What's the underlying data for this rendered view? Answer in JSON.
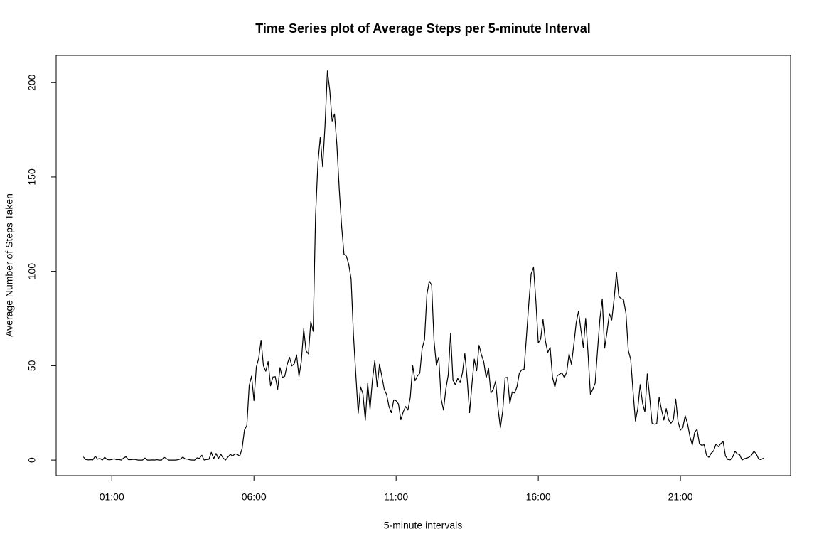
{
  "chart_data": {
    "type": "line",
    "title": "Time Series plot of Average Steps per 5-minute Interval",
    "x_label": "5-minute intervals",
    "y_label": "Average Number of Steps Taken",
    "color": "#000000",
    "x": [
      0,
      5,
      10,
      15,
      20,
      25,
      30,
      35,
      40,
      45,
      50,
      55,
      60,
      65,
      70,
      75,
      80,
      85,
      90,
      95,
      100,
      105,
      110,
      115,
      120,
      125,
      130,
      135,
      140,
      145,
      150,
      155,
      160,
      165,
      170,
      175,
      180,
      185,
      190,
      195,
      200,
      205,
      210,
      215,
      220,
      225,
      230,
      235,
      240,
      245,
      250,
      255,
      260,
      265,
      270,
      275,
      280,
      285,
      290,
      295,
      300,
      305,
      310,
      315,
      320,
      325,
      330,
      335,
      340,
      345,
      350,
      355,
      360,
      365,
      370,
      375,
      380,
      385,
      390,
      395,
      400,
      405,
      410,
      415,
      420,
      425,
      430,
      435,
      440,
      445,
      450,
      455,
      460,
      465,
      470,
      475,
      480,
      485,
      490,
      495,
      500,
      505,
      510,
      515,
      520,
      525,
      530,
      535,
      540,
      545,
      550,
      555,
      560,
      565,
      570,
      575,
      580,
      585,
      590,
      595,
      600,
      605,
      610,
      615,
      620,
      625,
      630,
      635,
      640,
      645,
      650,
      655,
      660,
      665,
      670,
      675,
      680,
      685,
      690,
      695,
      700,
      705,
      710,
      715,
      720,
      725,
      730,
      735,
      740,
      745,
      750,
      755,
      760,
      765,
      770,
      775,
      780,
      785,
      790,
      795,
      800,
      805,
      810,
      815,
      820,
      825,
      830,
      835,
      840,
      845,
      850,
      855,
      860,
      865,
      870,
      875,
      880,
      885,
      890,
      895,
      900,
      905,
      910,
      915,
      920,
      925,
      930,
      935,
      940,
      945,
      950,
      955,
      960,
      965,
      970,
      975,
      980,
      985,
      990,
      995,
      1000,
      1005,
      1010,
      1015,
      1020,
      1025,
      1030,
      1035,
      1040,
      1045,
      1050,
      1055,
      1060,
      1065,
      1070,
      1075,
      1080,
      1085,
      1090,
      1095,
      1100,
      1105,
      1110,
      1115,
      1120,
      1125,
      1130,
      1135,
      1140,
      1145,
      1150,
      1155,
      1160,
      1165,
      1170,
      1175,
      1180,
      1185,
      1190,
      1195,
      1200,
      1205,
      1210,
      1215,
      1220,
      1225,
      1230,
      1235,
      1240,
      1245,
      1250,
      1255,
      1260,
      1265,
      1270,
      1275,
      1280,
      1285,
      1290,
      1295,
      1300,
      1305,
      1310,
      1315,
      1320,
      1325,
      1330,
      1335,
      1340,
      1345,
      1350,
      1355,
      1360,
      1365,
      1370,
      1375,
      1380,
      1385,
      1390,
      1395,
      1400,
      1405,
      1410,
      1415,
      1420,
      1425,
      1430,
      1435
    ],
    "values": [
      1.7,
      0.3,
      0.1,
      0.2,
      0.1,
      2.1,
      0.5,
      0.9,
      0,
      1.5,
      0.3,
      0.1,
      0.3,
      0.7,
      0.2,
      0.3,
      0,
      1.1,
      1.8,
      0.2,
      0.2,
      0.4,
      0.3,
      0,
      0,
      0,
      1.1,
      0,
      0,
      0.1,
      0,
      0.2,
      0,
      0,
      1.5,
      0.9,
      0,
      0,
      0,
      0,
      0.2,
      0.6,
      1.6,
      0.6,
      0.5,
      0.1,
      0,
      0,
      1.2,
      0.9,
      2.6,
      0,
      0.3,
      0.4,
      4.1,
      0.7,
      3.5,
      0.8,
      3.1,
      1.1,
      0,
      1.6,
      3,
      2.2,
      3.3,
      3,
      2.1,
      6.1,
      16,
      18.3,
      39.5,
      44.5,
      31.5,
      49.3,
      53.8,
      63.5,
      50,
      47.1,
      52.2,
      39.3,
      44,
      44.2,
      37.4,
      49,
      43.8,
      44.4,
      50.5,
      54.5,
      49.9,
      51,
      55.7,
      44.3,
      52.3,
      69.5,
      57.8,
      56.2,
      73.4,
      68.2,
      129.4,
      157.5,
      171.2,
      155.4,
      177.3,
      206.2,
      195.9,
      179.6,
      183.4,
      167,
      143.5,
      124,
      109.1,
      108.1,
      103.7,
      96,
      66.2,
      45.2,
      24.8,
      38.8,
      35,
      21.1,
      40.6,
      27,
      42.4,
      52.7,
      38.9,
      50.8,
      44.3,
      37.4,
      34.7,
      28.3,
      25.1,
      31.9,
      31.4,
      29.7,
      21.3,
      25.5,
      28.4,
      26.5,
      33.4,
      50,
      42,
      44.6,
      46,
      59.2,
      63.9,
      87.7,
      94.8,
      92.8,
      63.4,
      50.2,
      54.5,
      32.4,
      26.5,
      37.7,
      45.1,
      67.3,
      42.3,
      39.9,
      43.3,
      41,
      46.2,
      56.4,
      42.8,
      25.1,
      40,
      53.5,
      47.3,
      60.8,
      55.8,
      52,
      43.6,
      48.7,
      35.5,
      37.5,
      41.8,
      27.5,
      17.1,
      26.1,
      43.6,
      43.8,
      30,
      36.1,
      35.5,
      38.8,
      46,
      47.8,
      48.1,
      65.3,
      82.9,
      98.7,
      102.1,
      84,
      62.1,
      64.1,
      74.5,
      63.2,
      56.9,
      59.8,
      43.9,
      38.6,
      44.7,
      45.5,
      46.2,
      43.7,
      46.6,
      56.3,
      50.7,
      61.2,
      72.7,
      78.9,
      68.9,
      59.7,
      75.1,
      56.5,
      34.8,
      37.5,
      40.7,
      58,
      74.7,
      85.3,
      59.3,
      67.8,
      77.7,
      74.2,
      85.3,
      99.5,
      86.6,
      85.6,
      84.9,
      77.8,
      58,
      53.4,
      36.3,
      20.7,
      27.4,
      40,
      30.2,
      25.5,
      45.7,
      33.5,
      19.6,
      19,
      19.3,
      33.3,
      26.8,
      21.2,
      27.3,
      21.3,
      19.5,
      21.3,
      32.3,
      20.2,
      15.9,
      17.2,
      23.5,
      19.2,
      12.5,
      8,
      14.7,
      16.3,
      8.7,
      7.8,
      8.1,
      2.6,
      1.5,
      3.7,
      4.8,
      8.5,
      7.1,
      8.7,
      9.8,
      2.2,
      0.3,
      0.1,
      1.6,
      4.6,
      3.3,
      2.8,
      0,
      0.8,
      1,
      1.6,
      2.6,
      4.7,
      3.3,
      0.6,
      0.2,
      1.1
    ],
    "xlim": [
      -57.4,
      1492.4
    ],
    "ylim": [
      -8.25,
      214.4
    ],
    "xticks": [
      {
        "value": 60,
        "label": "01:00"
      },
      {
        "value": 360,
        "label": "06:00"
      },
      {
        "value": 660,
        "label": "11:00"
      },
      {
        "value": 960,
        "label": "16:00"
      },
      {
        "value": 1260,
        "label": "21:00"
      }
    ],
    "yticks": [
      0,
      50,
      100,
      150,
      200
    ]
  }
}
